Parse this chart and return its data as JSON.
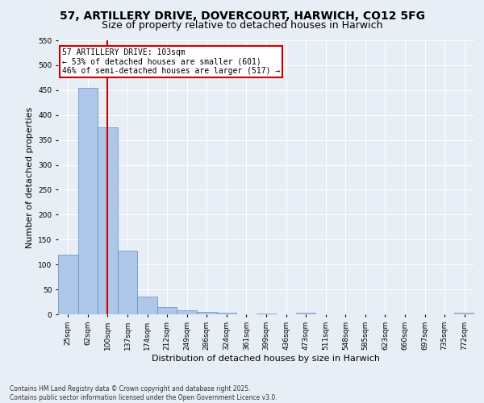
{
  "title1": "57, ARTILLERY DRIVE, DOVERCOURT, HARWICH, CO12 5FG",
  "title2": "Size of property relative to detached houses in Harwich",
  "xlabel": "Distribution of detached houses by size in Harwich",
  "ylabel": "Number of detached properties",
  "categories": [
    "25sqm",
    "62sqm",
    "100sqm",
    "137sqm",
    "174sqm",
    "212sqm",
    "249sqm",
    "286sqm",
    "324sqm",
    "361sqm",
    "399sqm",
    "436sqm",
    "473sqm",
    "511sqm",
    "548sqm",
    "585sqm",
    "623sqm",
    "660sqm",
    "697sqm",
    "735sqm",
    "772sqm"
  ],
  "values": [
    120,
    455,
    375,
    128,
    35,
    15,
    8,
    5,
    3,
    0,
    2,
    0,
    3,
    0,
    0,
    0,
    0,
    0,
    0,
    0,
    3
  ],
  "bar_color": "#aec6e8",
  "bar_edge_color": "#5a8fc2",
  "bar_edge_width": 0.5,
  "vline_x": 2,
  "vline_color": "#cc0000",
  "annotation_text": "57 ARTILLERY DRIVE: 103sqm\n← 53% of detached houses are smaller (601)\n46% of semi-detached houses are larger (517) →",
  "annotation_box_color": "#cc0000",
  "ylim": [
    0,
    550
  ],
  "yticks": [
    0,
    50,
    100,
    150,
    200,
    250,
    300,
    350,
    400,
    450,
    500,
    550
  ],
  "bg_color": "#e8eef5",
  "plot_bg_color": "#e8eef5",
  "grid_color": "#ffffff",
  "footer1": "Contains HM Land Registry data © Crown copyright and database right 2025.",
  "footer2": "Contains public sector information licensed under the Open Government Licence v3.0.",
  "title_fontsize": 10,
  "subtitle_fontsize": 9,
  "tick_fontsize": 6.5,
  "label_fontsize": 8,
  "annotation_fontsize": 7
}
